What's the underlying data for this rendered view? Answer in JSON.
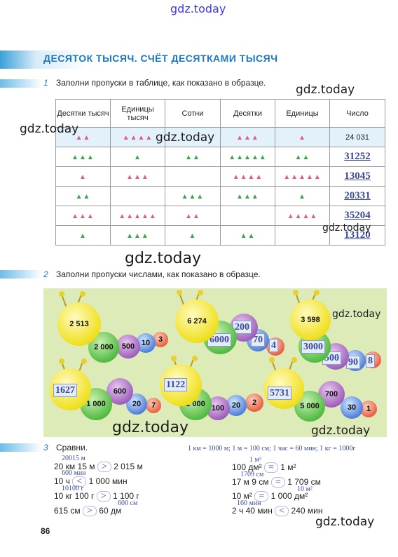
{
  "watermarks": {
    "top": "gdz.today",
    "w1": "gdz.today",
    "w2": "gdz.today",
    "w3": "gdz.today",
    "w4": "gdz.today",
    "w5": "gdz.today",
    "w6": "gdz.today",
    "w7": "gdz.today",
    "w8": "gdz.today",
    "w9": "gdz.today"
  },
  "page_title": "ДЕСЯТОК ТЫСЯЧ. СЧЁТ ДЕСЯТКАМИ ТЫСЯЧ",
  "task1": {
    "num": "1",
    "text": "Заполни пропуски в таблице, как показано в образце."
  },
  "table": {
    "headers": [
      "Десятки тысяч",
      "Единицы тысяч",
      "Сотни",
      "Десятки",
      "Единицы",
      "Число"
    ],
    "rows": [
      {
        "c1": "▲▲",
        "c2": "▲▲▲▲",
        "c3": "",
        "c4": "▲▲▲",
        "c5": "▲",
        "num": "24 031"
      },
      {
        "c1": "▲▲▲",
        "c2": "▲",
        "c3": "▲▲",
        "c4": "▲▲▲▲▲",
        "c5": "▲▲",
        "num": "31252"
      },
      {
        "c1": "▲",
        "c2": "▲▲▲",
        "c3": "",
        "c4": "▲▲▲▲",
        "c5": "▲▲▲▲▲",
        "num": "13045"
      },
      {
        "c1": "▲▲",
        "c2": "",
        "c3": "▲▲▲",
        "c4": "▲▲▲",
        "c5": "▲",
        "num": "20331"
      },
      {
        "c1": "▲▲▲",
        "c2": "▲▲▲▲▲",
        "c3": "▲▲",
        "c4": "",
        "c5": "▲▲▲▲",
        "num": "35204"
      },
      {
        "c1": "▲",
        "c2": "▲▲▲",
        "c3": "▲",
        "c4": "▲▲",
        "c5": "",
        "num": "13120"
      }
    ]
  },
  "task2": {
    "num": "2",
    "text": "Заполни пропуски числами, как показано в образце."
  },
  "caterpillars": [
    {
      "head": "2 513",
      "parts": [
        "2 000",
        "500",
        "10",
        "3"
      ]
    },
    {
      "head": "6 274",
      "parts": [
        "6000",
        "200",
        "70",
        "4"
      ]
    },
    {
      "head": "3 598",
      "parts": [
        "3000",
        "500",
        "90",
        "8"
      ]
    },
    {
      "head": "1627",
      "parts": [
        "1 000",
        "600",
        "20",
        "7"
      ]
    },
    {
      "head": "1122",
      "parts": [
        "1 000",
        "100",
        "20",
        "2"
      ]
    },
    {
      "head": "5731",
      "parts": [
        "5 000",
        "700",
        "30",
        "1"
      ]
    }
  ],
  "task3": {
    "num": "3",
    "text": "Сравни.",
    "note": "1 км = 1000 м; 1 м = 100 см; 1 час = 60 мин; 1 кг = 1000г",
    "left": [
      {
        "hint": "20015 м",
        "expr": "20 км 15 м",
        "sign": ">",
        "rhs": "2 015 м"
      },
      {
        "hint": "600 мин",
        "expr": "10 ч",
        "sign": "<",
        "rhs": "1 000 мин"
      },
      {
        "hint": "10100 г",
        "expr": "10 кг 100 г",
        "sign": ">",
        "rhs": "1 100 г"
      },
      {
        "hint": "600 см",
        "expr": "615 см",
        "sign": ">",
        "rhs": "60 дм"
      }
    ],
    "right": [
      {
        "hint": "1 м²",
        "expr": "100 дм²",
        "sign": "=",
        "rhs": "1 м²"
      },
      {
        "hint": "1709 см",
        "expr": "17 м 9 см",
        "sign": "=",
        "rhs": "1 709 см"
      },
      {
        "hint": "10 м²",
        "expr": "10 м²",
        "sign": "=",
        "rhs": "1 000 дм²"
      },
      {
        "hint": "160 мин",
        "expr": "2 ч 40 мин",
        "sign": "<",
        "rhs": "240 мин"
      }
    ]
  },
  "page_number": "86"
}
